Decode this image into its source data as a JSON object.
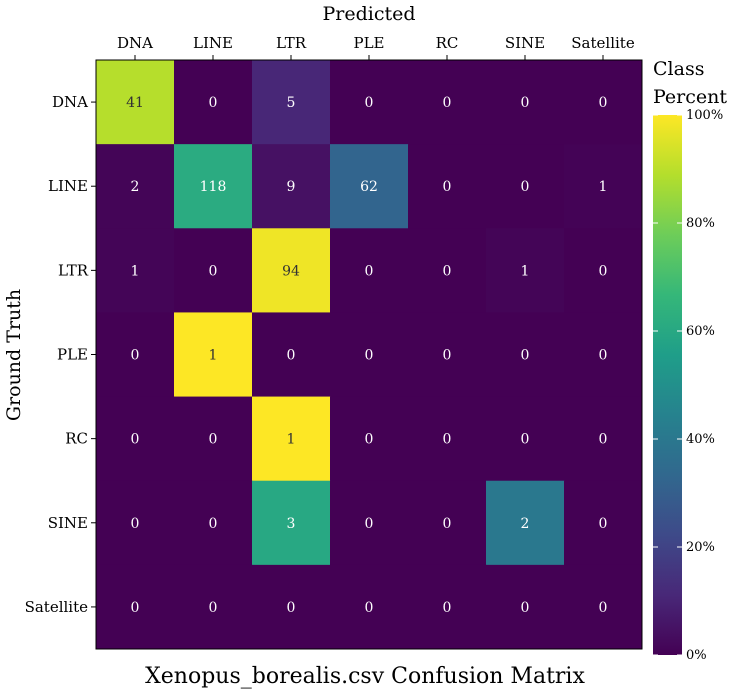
{
  "chart_data": {
    "type": "heatmap",
    "title": "Xenopus_borealis.csv Confusion Matrix",
    "xlabel": "Predicted",
    "ylabel": "Ground Truth",
    "x_categories": [
      "DNA",
      "LINE",
      "LTR",
      "PLE",
      "RC",
      "SINE",
      "Satellite"
    ],
    "y_categories": [
      "DNA",
      "LINE",
      "LTR",
      "PLE",
      "RC",
      "SINE",
      "Satellite"
    ],
    "values": [
      [
        41,
        0,
        5,
        0,
        0,
        0,
        0
      ],
      [
        2,
        118,
        9,
        62,
        0,
        0,
        1
      ],
      [
        1,
        0,
        94,
        0,
        0,
        1,
        0
      ],
      [
        0,
        1,
        0,
        0,
        0,
        0,
        0
      ],
      [
        0,
        0,
        1,
        0,
        0,
        0,
        0
      ],
      [
        0,
        0,
        3,
        0,
        0,
        2,
        0
      ],
      [
        0,
        0,
        0,
        0,
        0,
        0,
        0
      ]
    ],
    "color_scale": "viridis",
    "color_basis": "row percent",
    "legend": {
      "title_lines": [
        "Class",
        "Percent"
      ],
      "ticks": [
        "0%",
        "20%",
        "40%",
        "60%",
        "80%",
        "100%"
      ],
      "range": [
        0,
        100
      ],
      "placement": "right"
    },
    "grid": false
  }
}
